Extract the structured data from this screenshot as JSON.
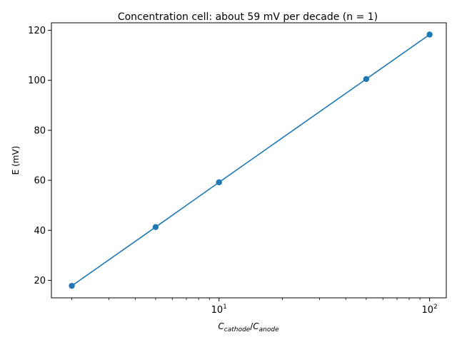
{
  "chart_data": {
    "type": "line",
    "title": "Concentration cell: about 59 mV per decade (n = 1)",
    "xlabel": "C_cathode/C_anode",
    "xlabel_parts": {
      "base": "C",
      "num_sub": "cathode",
      "sep": "/",
      "base2": "C",
      "den_sub": "anode"
    },
    "ylabel": "E (mV)",
    "x_scale": "log",
    "xlim": [
      1.6,
      120
    ],
    "ylim": [
      13,
      123
    ],
    "x_ticks_major": [
      {
        "value": 10,
        "base": "10",
        "exp": "1"
      },
      {
        "value": 100,
        "base": "10",
        "exp": "2"
      }
    ],
    "y_ticks": [
      20,
      40,
      60,
      80,
      100,
      120
    ],
    "grid": false,
    "series": [
      {
        "color": "#1f77b4",
        "marker": "circle",
        "x": [
          2,
          5,
          10,
          50,
          100
        ],
        "y": [
          17.8,
          41.3,
          59.2,
          100.5,
          118.3
        ]
      }
    ]
  }
}
